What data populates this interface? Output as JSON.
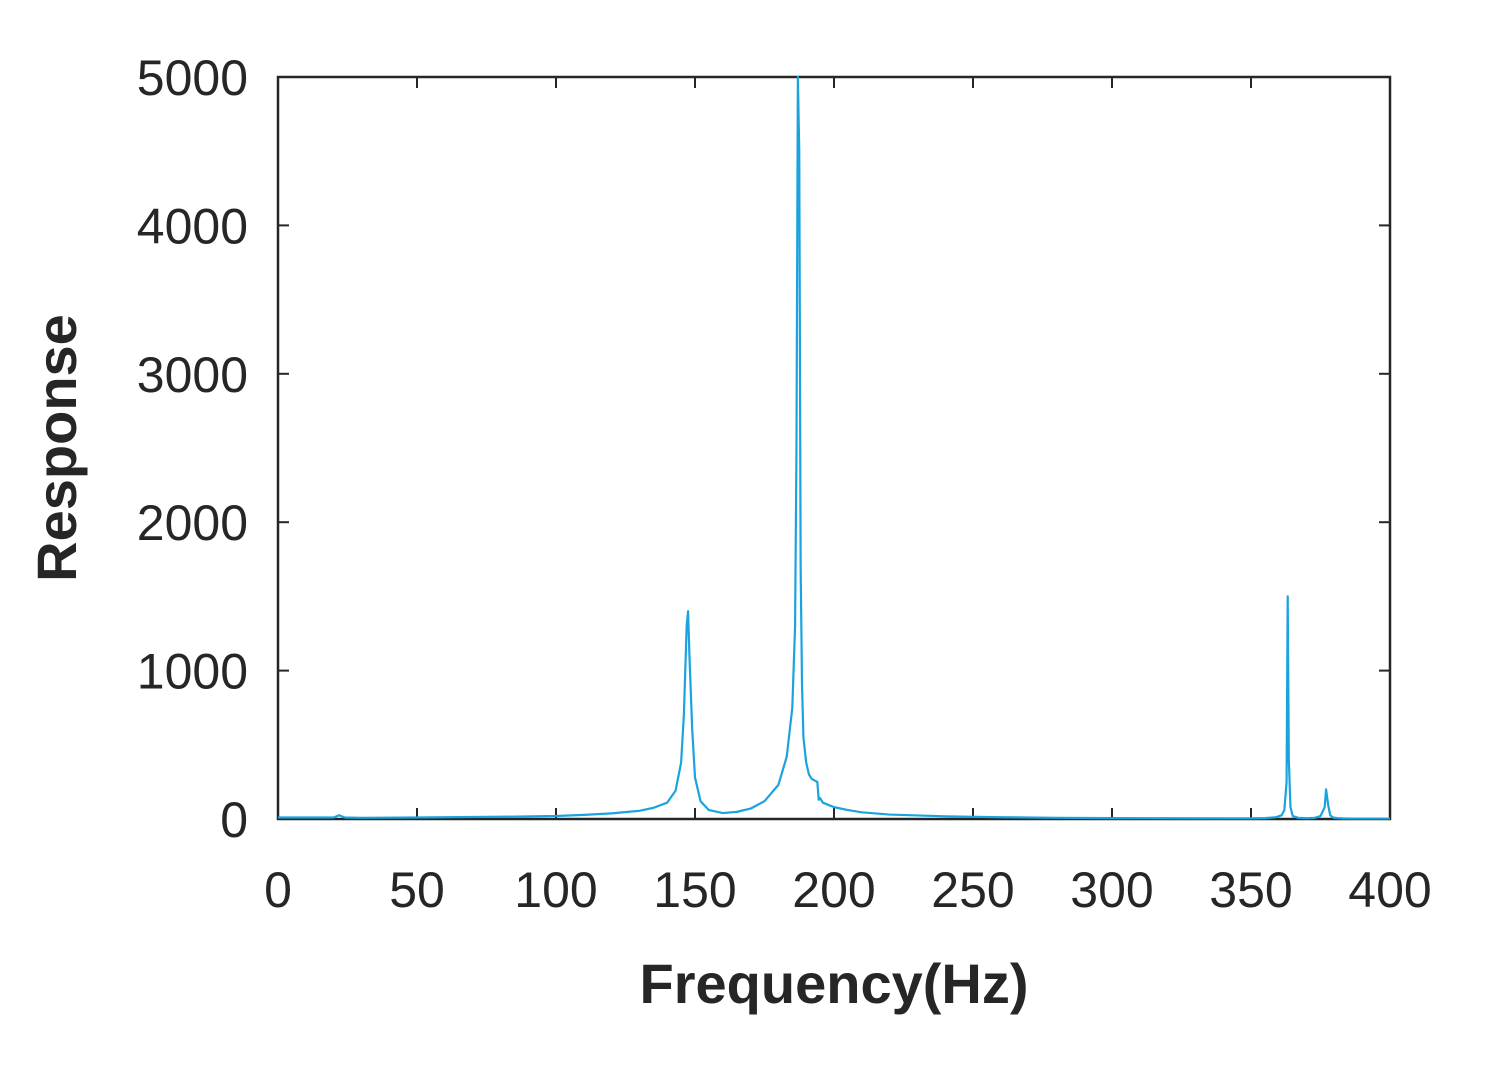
{
  "chart_data": {
    "type": "line",
    "title": "",
    "xlabel": "Frequency(Hz)",
    "ylabel": "Response",
    "xlim": [
      0,
      400
    ],
    "ylim": [
      0,
      5000
    ],
    "xticks": [
      0,
      50,
      100,
      150,
      200,
      250,
      300,
      350,
      400
    ],
    "yticks": [
      0,
      1000,
      2000,
      3000,
      4000,
      5000
    ],
    "grid": false,
    "line_color": "#1aa3dd",
    "series": [
      {
        "x": [
          0,
          20,
          22,
          24,
          30,
          50,
          80,
          100,
          110,
          120,
          130,
          135,
          140,
          143,
          145,
          146,
          147,
          147.5,
          148,
          149,
          150,
          152,
          155,
          160,
          165,
          170,
          175,
          180,
          183,
          185,
          186,
          186.5,
          187,
          187.5,
          188,
          188.5,
          189,
          190,
          191,
          192,
          193,
          194,
          194.5,
          195,
          196,
          200,
          205,
          210,
          220,
          240,
          260,
          280,
          300,
          320,
          340,
          350,
          355,
          359,
          361,
          362,
          362.8,
          363.2,
          363.6,
          364.2,
          365,
          367,
          370,
          373,
          375,
          376.5,
          377,
          377.8,
          378.5,
          379.5,
          381,
          383,
          386,
          390,
          395,
          400
        ],
        "y": [
          10,
          10,
          25,
          10,
          8,
          10,
          15,
          20,
          28,
          38,
          55,
          75,
          110,
          190,
          380,
          700,
          1300,
          1400,
          1100,
          600,
          280,
          120,
          60,
          40,
          48,
          70,
          120,
          230,
          420,
          750,
          1300,
          2500,
          5000,
          4500,
          1700,
          900,
          550,
          380,
          300,
          270,
          260,
          250,
          130,
          140,
          110,
          80,
          60,
          45,
          30,
          18,
          12,
          8,
          6,
          5,
          4,
          4,
          6,
          12,
          25,
          60,
          250,
          1500,
          400,
          80,
          20,
          8,
          5,
          8,
          20,
          80,
          200,
          90,
          25,
          10,
          6,
          4,
          3,
          3,
          3,
          3
        ]
      }
    ]
  }
}
